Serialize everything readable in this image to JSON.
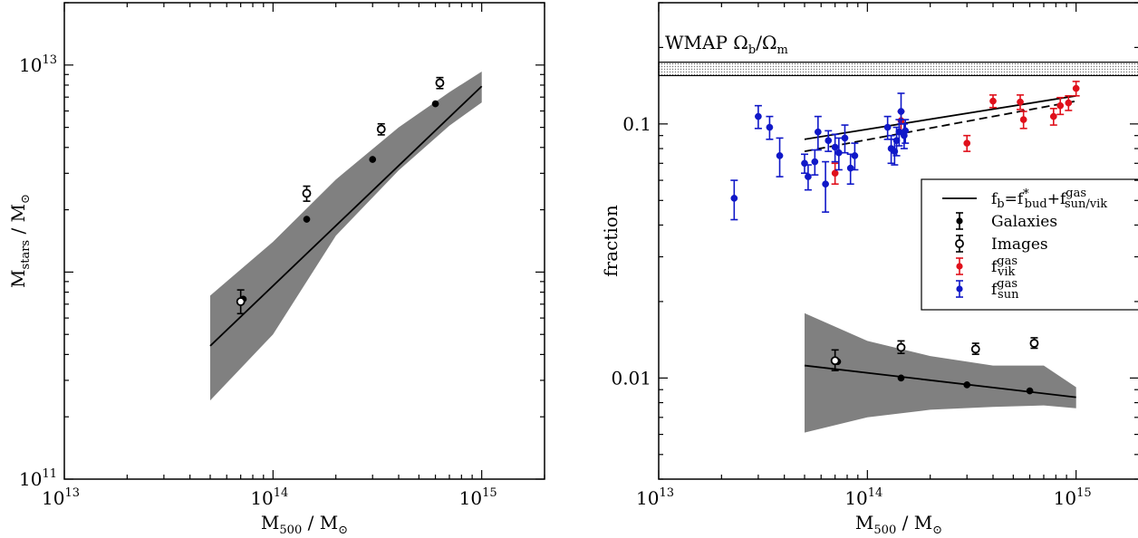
{
  "chart_data": [
    {
      "type": "scatter",
      "panel": "left",
      "xscale": "log",
      "yscale": "log",
      "xlim": [
        10000000000000.0,
        2000000000000000.0
      ],
      "ylim": [
        100000000000.0,
        20000000000000.0
      ],
      "xlabel_main": "M",
      "xlabel_sub": "500",
      "xlabel_rest": " / M",
      "xlabel_sun": "⊙",
      "ylabel_main": "M",
      "ylabel_sub": "stars",
      "ylabel_rest": " / M",
      "ylabel_sun": "⊙",
      "xticks": [
        {
          "value": 10000000000000.0,
          "base": "10",
          "exp": "13"
        },
        {
          "value": 100000000000000.0,
          "base": "10",
          "exp": "14"
        },
        {
          "value": 1000000000000000.0,
          "base": "10",
          "exp": "15"
        }
      ],
      "yticks": [
        {
          "value": 100000000000.0,
          "base": "10",
          "exp": "11"
        },
        {
          "value": 10000000000000.0,
          "base": "10",
          "exp": "13"
        }
      ],
      "fit_line": {
        "x": [
          50000000000000.0,
          1000000000000000.0
        ],
        "y": [
          440000000000.0,
          7900000000000.0
        ]
      },
      "shaded_band": {
        "x": [
          50000000000000.0,
          100000000000000.0,
          200000000000000.0,
          400000000000000.0,
          700000000000000.0,
          1000000000000000.0
        ],
        "upper": [
          770000000000.0,
          1400000000000.0,
          2800000000000.0,
          5000000000000.0,
          7400000000000.0,
          9300000000000.0
        ],
        "lower": [
          240000000000.0,
          500000000000.0,
          1500000000000.0,
          3100000000000.0,
          5100000000000.0,
          6600000000000.0
        ]
      },
      "series": [
        {
          "name": "Galaxies",
          "style": "filled",
          "x": [
            72000000000000.0,
            145000000000000.0,
            300000000000000.0,
            600000000000000.0
          ],
          "y": [
            740000000000.0,
            1800000000000.0,
            3500000000000.0,
            6500000000000.0
          ],
          "yerr_low": [
            0,
            0,
            0,
            0
          ],
          "yerr_high": [
            0,
            0,
            0,
            0
          ]
        },
        {
          "name": "Images",
          "style": "open",
          "x": [
            70000000000000.0,
            145000000000000.0,
            330000000000000.0,
            630000000000000.0
          ],
          "y": [
            720000000000.0,
            2400000000000.0,
            4900000000000.0,
            8200000000000.0
          ],
          "yerr_low": [
            90000000000.0,
            200000000000.0,
            300000000000.0,
            500000000000.0
          ],
          "yerr_high": [
            100000000000.0,
            200000000000.0,
            300000000000.0,
            500000000000.0
          ]
        }
      ]
    },
    {
      "type": "scatter",
      "panel": "right",
      "xscale": "log",
      "yscale": "log",
      "xlim": [
        10000000000000.0,
        2000000000000000.0
      ],
      "ylim": [
        0.004,
        0.3
      ],
      "xlabel_main": "M",
      "xlabel_sub": "500",
      "xlabel_rest": " / M",
      "xlabel_sun": "⊙",
      "ylabel": "fraction",
      "xticks": [
        {
          "value": 10000000000000.0,
          "base": "10",
          "exp": "13"
        },
        {
          "value": 100000000000000.0,
          "base": "10",
          "exp": "14"
        },
        {
          "value": 1000000000000000.0,
          "base": "10",
          "exp": "15"
        }
      ],
      "yticks": [
        {
          "value": 0.01,
          "label": "0.01"
        },
        {
          "value": 0.1,
          "label": "0.1"
        }
      ],
      "wmap_band": {
        "low": 0.155,
        "high": 0.175
      },
      "wmap_label_main": "WMAP Ω",
      "wmap_label_b": "b",
      "wmap_label_slash": "/Ω",
      "wmap_label_m": "m",
      "fb_solid": {
        "x": [
          50000000000000.0,
          1000000000000000.0
        ],
        "y": [
          0.087,
          0.129
        ]
      },
      "fb_dashed": {
        "x": [
          50000000000000.0,
          1000000000000000.0
        ],
        "y": [
          0.078,
          0.123
        ]
      },
      "stellar_fit": {
        "x": [
          50000000000000.0,
          1000000000000000.0
        ],
        "y": [
          0.0112,
          0.0084
        ]
      },
      "stellar_band": {
        "x": [
          50000000000000.0,
          100000000000000.0,
          200000000000000.0,
          400000000000000.0,
          700000000000000.0,
          1000000000000000.0
        ],
        "upper": [
          0.018,
          0.014,
          0.0122,
          0.0112,
          0.0112,
          0.0092
        ],
        "lower": [
          0.0061,
          0.007,
          0.0075,
          0.0077,
          0.0078,
          0.0076
        ]
      },
      "series": [
        {
          "name": "Galaxies",
          "style": "filled",
          "color": "#000000",
          "x": [
            72000000000000.0,
            145000000000000.0,
            300000000000000.0,
            600000000000000.0
          ],
          "y": [
            0.0116,
            0.01,
            0.0094,
            0.0089
          ],
          "yerr_low": [
            0,
            0,
            0,
            0
          ],
          "yerr_high": [
            0,
            0,
            0,
            0
          ]
        },
        {
          "name": "Images",
          "style": "open",
          "color": "#000000",
          "x": [
            70000000000000.0,
            145000000000000.0,
            330000000000000.0,
            630000000000000.0
          ],
          "y": [
            0.0117,
            0.0132,
            0.013,
            0.0137
          ],
          "yerr_low": [
            0.001,
            0.0007,
            0.0006,
            0.0006
          ],
          "yerr_high": [
            0.0012,
            0.0008,
            0.0007,
            0.0007
          ]
        },
        {
          "name": "f_vik_gas",
          "style": "filled",
          "color": "#e0101b",
          "x": [
            70000000000000.0,
            145000000000000.0,
            300000000000000.0,
            400000000000000.0,
            540000000000000.0,
            560000000000000.0,
            780000000000000.0,
            840000000000000.0,
            920000000000000.0,
            1000000000000000.0
          ],
          "y": [
            0.064,
            0.103,
            0.084,
            0.123,
            0.122,
            0.104,
            0.107,
            0.118,
            0.121,
            0.138
          ],
          "yerr_low": [
            0.006,
            0.009,
            0.006,
            0.007,
            0.008,
            0.008,
            0.008,
            0.009,
            0.008,
            0.009
          ],
          "yerr_high": [
            0.006,
            0.009,
            0.006,
            0.007,
            0.008,
            0.008,
            0.008,
            0.009,
            0.008,
            0.009
          ]
        },
        {
          "name": "f_sun_gas",
          "style": "filled",
          "color": "#1018c8",
          "x": [
            23000000000000.0,
            30000000000000.0,
            34000000000000.0,
            38000000000000.0,
            50000000000000.0,
            52000000000000.0,
            56000000000000.0,
            58000000000000.0,
            63000000000000.0,
            65000000000000.0,
            70000000000000.0,
            73000000000000.0,
            78000000000000.0,
            83000000000000.0,
            87000000000000.0,
            125000000000000.0,
            130000000000000.0,
            135000000000000.0,
            138000000000000.0,
            142000000000000.0,
            145000000000000.0,
            150000000000000.0,
            152000000000000.0
          ],
          "y": [
            0.051,
            0.107,
            0.097,
            0.075,
            0.07,
            0.062,
            0.071,
            0.093,
            0.058,
            0.086,
            0.081,
            0.077,
            0.088,
            0.067,
            0.075,
            0.097,
            0.08,
            0.078,
            0.086,
            0.093,
            0.112,
            0.09,
            0.094
          ],
          "yerr_low": [
            0.009,
            0.011,
            0.01,
            0.013,
            0.006,
            0.007,
            0.008,
            0.014,
            0.013,
            0.008,
            0.01,
            0.011,
            0.011,
            0.009,
            0.009,
            0.01,
            0.01,
            0.009,
            0.011,
            0.011,
            0.012,
            0.01,
            0.01
          ],
          "yerr_high": [
            0.009,
            0.011,
            0.01,
            0.013,
            0.006,
            0.007,
            0.008,
            0.014,
            0.013,
            0.008,
            0.01,
            0.011,
            0.011,
            0.009,
            0.009,
            0.01,
            0.01,
            0.009,
            0.011,
            0.011,
            0.02,
            0.01,
            0.01
          ]
        }
      ],
      "legend": {
        "placement": "right",
        "entries": [
          {
            "kind": "line",
            "text_main": "f",
            "text_b": "b",
            "text_eq": "=f",
            "text_star": "*",
            "text_bud": "bud",
            "text_plus": "+f",
            "text_gas": "gas",
            "text_sunvik": "sun/vik"
          },
          {
            "kind": "point",
            "color": "#000000",
            "filled": true,
            "text": "Galaxies"
          },
          {
            "kind": "point",
            "color": "#000000",
            "filled": false,
            "text": "Images"
          },
          {
            "kind": "point",
            "color": "#e0101b",
            "filled": true,
            "text_main": "f",
            "text_sup": "gas",
            "text_sub": "vik"
          },
          {
            "kind": "point",
            "color": "#1018c8",
            "filled": true,
            "text_main": "f",
            "text_sup": "gas",
            "text_sub": "sun"
          }
        ]
      }
    }
  ]
}
